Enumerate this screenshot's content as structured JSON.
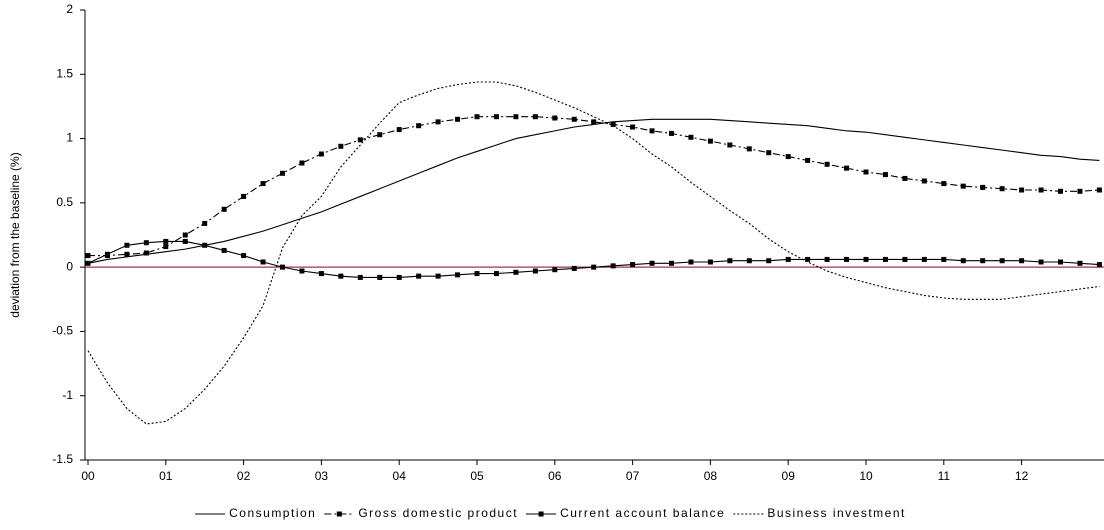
{
  "chart_data": {
    "type": "line",
    "y_label": "deviation from the baseline (%)",
    "categories": [
      "00",
      null,
      null,
      null,
      "01",
      null,
      null,
      null,
      "02",
      null,
      null,
      null,
      "03",
      null,
      null,
      null,
      "04",
      null,
      null,
      null,
      "05",
      null,
      null,
      null,
      "06",
      null,
      null,
      null,
      "07",
      null,
      null,
      null,
      "08",
      null,
      null,
      null,
      "09",
      null,
      null,
      null,
      "10",
      null,
      null,
      null,
      "11",
      null,
      null,
      null,
      "12",
      null,
      null,
      null,
      null
    ],
    "ylim": [
      -1.5,
      2
    ],
    "yticks": [
      2,
      1.5,
      1,
      0.5,
      0,
      -0.5,
      -1,
      -1.5
    ],
    "series": [
      {
        "name": "Consumption",
        "color": "#000000",
        "line_style": "solid",
        "marker": "none",
        "values": [
          0.03,
          0.06,
          0.08,
          0.1,
          0.12,
          0.14,
          0.17,
          0.2,
          0.24,
          0.28,
          0.33,
          0.38,
          0.43,
          0.49,
          0.55,
          0.61,
          0.67,
          0.73,
          0.79,
          0.85,
          0.9,
          0.95,
          1.0,
          1.03,
          1.06,
          1.09,
          1.11,
          1.13,
          1.14,
          1.15,
          1.15,
          1.15,
          1.15,
          1.14,
          1.13,
          1.12,
          1.11,
          1.1,
          1.08,
          1.06,
          1.05,
          1.03,
          1.01,
          0.99,
          0.97,
          0.95,
          0.93,
          0.91,
          0.89,
          0.87,
          0.86,
          0.84,
          0.83
        ]
      },
      {
        "name": "Gross domestic product",
        "color": "#000000",
        "line_style": "dashdot",
        "marker": "square",
        "values": [
          0.09,
          0.09,
          0.1,
          0.11,
          0.16,
          0.25,
          0.34,
          0.45,
          0.55,
          0.65,
          0.73,
          0.81,
          0.88,
          0.94,
          0.99,
          1.03,
          1.07,
          1.1,
          1.13,
          1.15,
          1.17,
          1.17,
          1.17,
          1.17,
          1.16,
          1.15,
          1.13,
          1.11,
          1.09,
          1.06,
          1.04,
          1.01,
          0.98,
          0.95,
          0.92,
          0.89,
          0.86,
          0.83,
          0.8,
          0.77,
          0.74,
          0.72,
          0.69,
          0.67,
          0.65,
          0.63,
          0.62,
          0.61,
          0.6,
          0.6,
          0.59,
          0.59,
          0.6
        ]
      },
      {
        "name": "Current account balance",
        "color": "#000000",
        "line_style": "solid",
        "marker": "square",
        "values": [
          0.03,
          0.1,
          0.17,
          0.19,
          0.2,
          0.2,
          0.17,
          0.13,
          0.09,
          0.04,
          0.0,
          -0.03,
          -0.05,
          -0.07,
          -0.08,
          -0.08,
          -0.08,
          -0.07,
          -0.07,
          -0.06,
          -0.05,
          -0.05,
          -0.04,
          -0.03,
          -0.02,
          -0.01,
          0.0,
          0.01,
          0.02,
          0.03,
          0.03,
          0.04,
          0.04,
          0.05,
          0.05,
          0.05,
          0.06,
          0.06,
          0.06,
          0.06,
          0.06,
          0.06,
          0.06,
          0.06,
          0.06,
          0.05,
          0.05,
          0.05,
          0.05,
          0.04,
          0.04,
          0.03,
          0.02
        ]
      },
      {
        "name": "Business investment",
        "color": "#000000",
        "line_style": "dotted",
        "marker": "none",
        "values": [
          -0.65,
          -0.9,
          -1.1,
          -1.22,
          -1.2,
          -1.1,
          -0.95,
          -0.77,
          -0.55,
          -0.3,
          0.15,
          0.4,
          0.55,
          0.78,
          0.95,
          1.12,
          1.28,
          1.34,
          1.39,
          1.42,
          1.44,
          1.44,
          1.41,
          1.36,
          1.3,
          1.24,
          1.17,
          1.1,
          1.0,
          0.88,
          0.78,
          0.66,
          0.55,
          0.44,
          0.34,
          0.22,
          0.12,
          0.04,
          -0.03,
          -0.08,
          -0.12,
          -0.16,
          -0.19,
          -0.22,
          -0.24,
          -0.25,
          -0.25,
          -0.25,
          -0.23,
          -0.21,
          -0.19,
          -0.17,
          -0.15
        ]
      }
    ],
    "zero_line_color": "#993366",
    "legend": "bottom"
  }
}
